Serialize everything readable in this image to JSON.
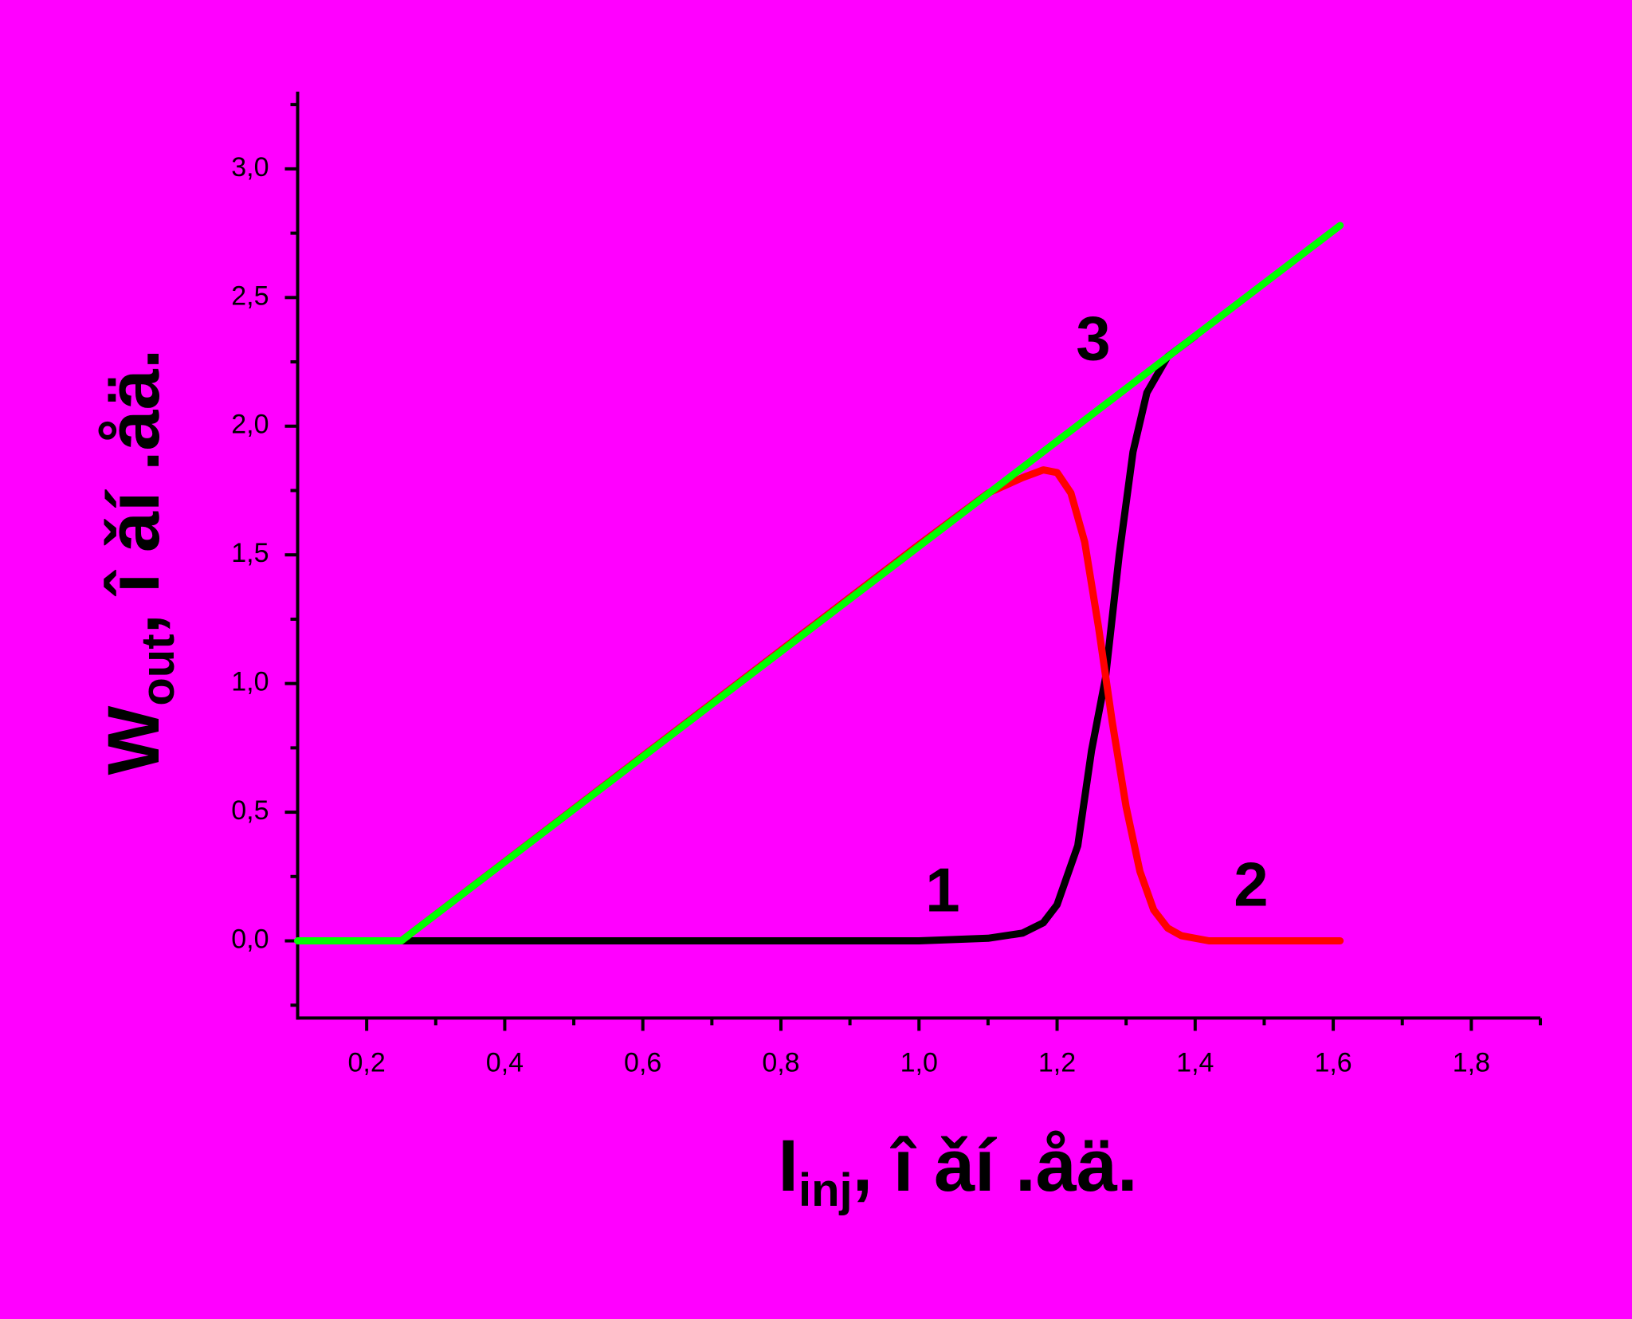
{
  "chart_data": {
    "type": "line",
    "background": "#ff00ff",
    "xlabel": {
      "main": "I",
      "sub": "inj",
      "rest": ", î ǎí .åä."
    },
    "ylabel": {
      "main": "W",
      "sub": "out",
      "rest": ", î ǎí .åä."
    },
    "xlim": [
      0.1,
      1.9
    ],
    "ylim": [
      -0.3,
      3.3
    ],
    "xticks": [
      {
        "value": 0.2,
        "label": "0,2"
      },
      {
        "value": 0.4,
        "label": "0,4"
      },
      {
        "value": 0.6,
        "label": "0,6"
      },
      {
        "value": 0.8,
        "label": "0,8"
      },
      {
        "value": 1.0,
        "label": "1,0"
      },
      {
        "value": 1.2,
        "label": "1,2"
      },
      {
        "value": 1.4,
        "label": "1,4"
      },
      {
        "value": 1.6,
        "label": "1,6"
      },
      {
        "value": 1.8,
        "label": "1,8"
      }
    ],
    "yticks": [
      {
        "value": 0.0,
        "label": "0,0"
      },
      {
        "value": 0.5,
        "label": "0,5"
      },
      {
        "value": 1.0,
        "label": "1,0"
      },
      {
        "value": 1.5,
        "label": "1,5"
      },
      {
        "value": 2.0,
        "label": "2,0"
      },
      {
        "value": 2.5,
        "label": "2,5"
      },
      {
        "value": 3.0,
        "label": "3,0"
      }
    ],
    "xminorticks": [
      0.3,
      0.5,
      0.7,
      0.9,
      1.1,
      1.3,
      1.5,
      1.7,
      1.9
    ],
    "yminorticks": [
      -0.25,
      0.25,
      0.75,
      1.25,
      1.75,
      2.25,
      2.75,
      3.25
    ],
    "grid": false,
    "series": [
      {
        "name": "1",
        "color": "#000000",
        "x": [
          0.25,
          1.0,
          1.1,
          1.15,
          1.18,
          1.2,
          1.23,
          1.25,
          1.27,
          1.29,
          1.31,
          1.33,
          1.36,
          1.4
        ],
        "values": [
          0,
          0,
          0.01,
          0.03,
          0.07,
          0.14,
          0.37,
          0.74,
          1.02,
          1.5,
          1.9,
          2.13,
          2.27,
          2.35
        ]
      },
      {
        "name": "2",
        "color": "#ff0000",
        "x": [
          0.25,
          1.0,
          1.1,
          1.15,
          1.18,
          1.2,
          1.22,
          1.24,
          1.26,
          1.28,
          1.3,
          1.32,
          1.34,
          1.36,
          1.38,
          1.42,
          1.61
        ],
        "values": [
          0,
          1.54,
          1.74,
          1.8,
          1.83,
          1.82,
          1.74,
          1.55,
          1.22,
          0.85,
          0.52,
          0.27,
          0.12,
          0.05,
          0.02,
          0,
          0
        ]
      },
      {
        "name": "3",
        "color": "#00ff00",
        "x": [
          0.1,
          0.25,
          1.61
        ],
        "values": [
          0,
          0,
          2.78
        ]
      }
    ]
  }
}
